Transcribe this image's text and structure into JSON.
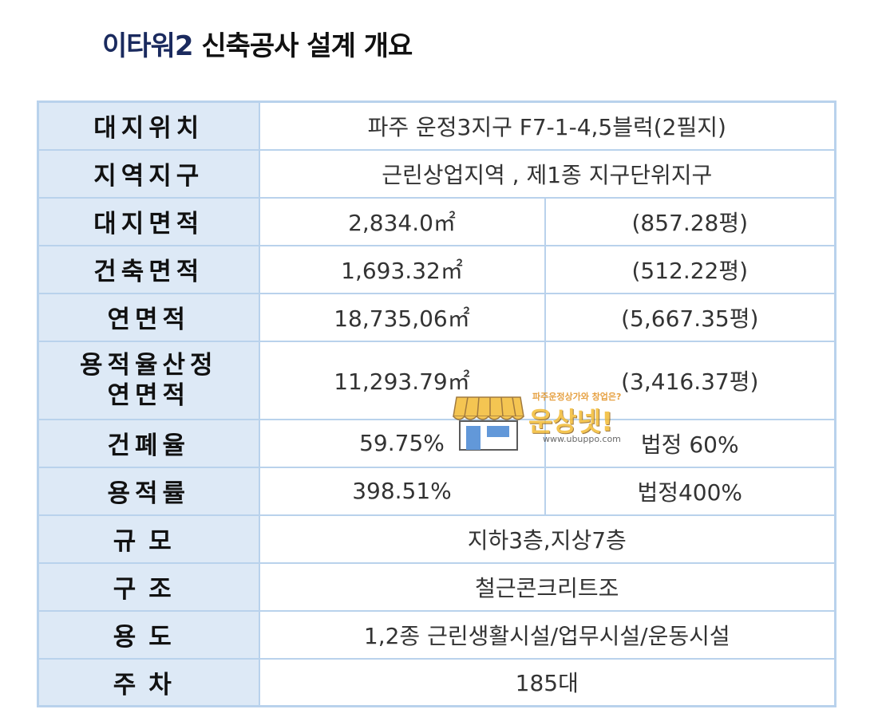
{
  "title": {
    "brand": "이타워2",
    "rest": "신축공사 설계 개요"
  },
  "rows": [
    {
      "label": "대지위치",
      "value": "파주 운정3지구 F7-1-4,5블럭(2필지)"
    },
    {
      "label": "지역지구",
      "value": "근린상업지역 , 제1종 지구단위지구"
    },
    {
      "label": "대지면적",
      "value_left": "2,834.0㎡",
      "value_right": "(857.28평)"
    },
    {
      "label": "건축면적",
      "value_left": "1,693.32㎡",
      "value_right": "(512.22평)"
    },
    {
      "label": "연면적",
      "value_left": "18,735,06㎡",
      "value_right": "(5,667.35평)"
    },
    {
      "label_line1": "용적율산정",
      "label_line2": "연면적",
      "value_left": "11,293.79㎡",
      "value_right": "(3,416.37평)"
    },
    {
      "label": "건폐율",
      "value_left": "59.75%",
      "value_right": "법정 60%"
    },
    {
      "label": "용적률",
      "value_left": "398.51%",
      "value_right": "법정400%"
    },
    {
      "label": "규모",
      "value": "지하3층,지상7층"
    },
    {
      "label": "구조",
      "value": "철근콘크리트조"
    },
    {
      "label": "용도",
      "value": "1,2종 근린생활시설/업무시설/운동시설"
    },
    {
      "label": "주차",
      "value": "185대"
    }
  ],
  "watermark": {
    "tagline": "파주운정상가와 창업은?",
    "name": "운상넷!",
    "url": "www.ubuppo.com",
    "icon": "shop-storefront-icon"
  },
  "colors": {
    "header_bg": "#dde9f6",
    "border": "#b9d2ec",
    "title_brand": "#1a2a5e"
  }
}
